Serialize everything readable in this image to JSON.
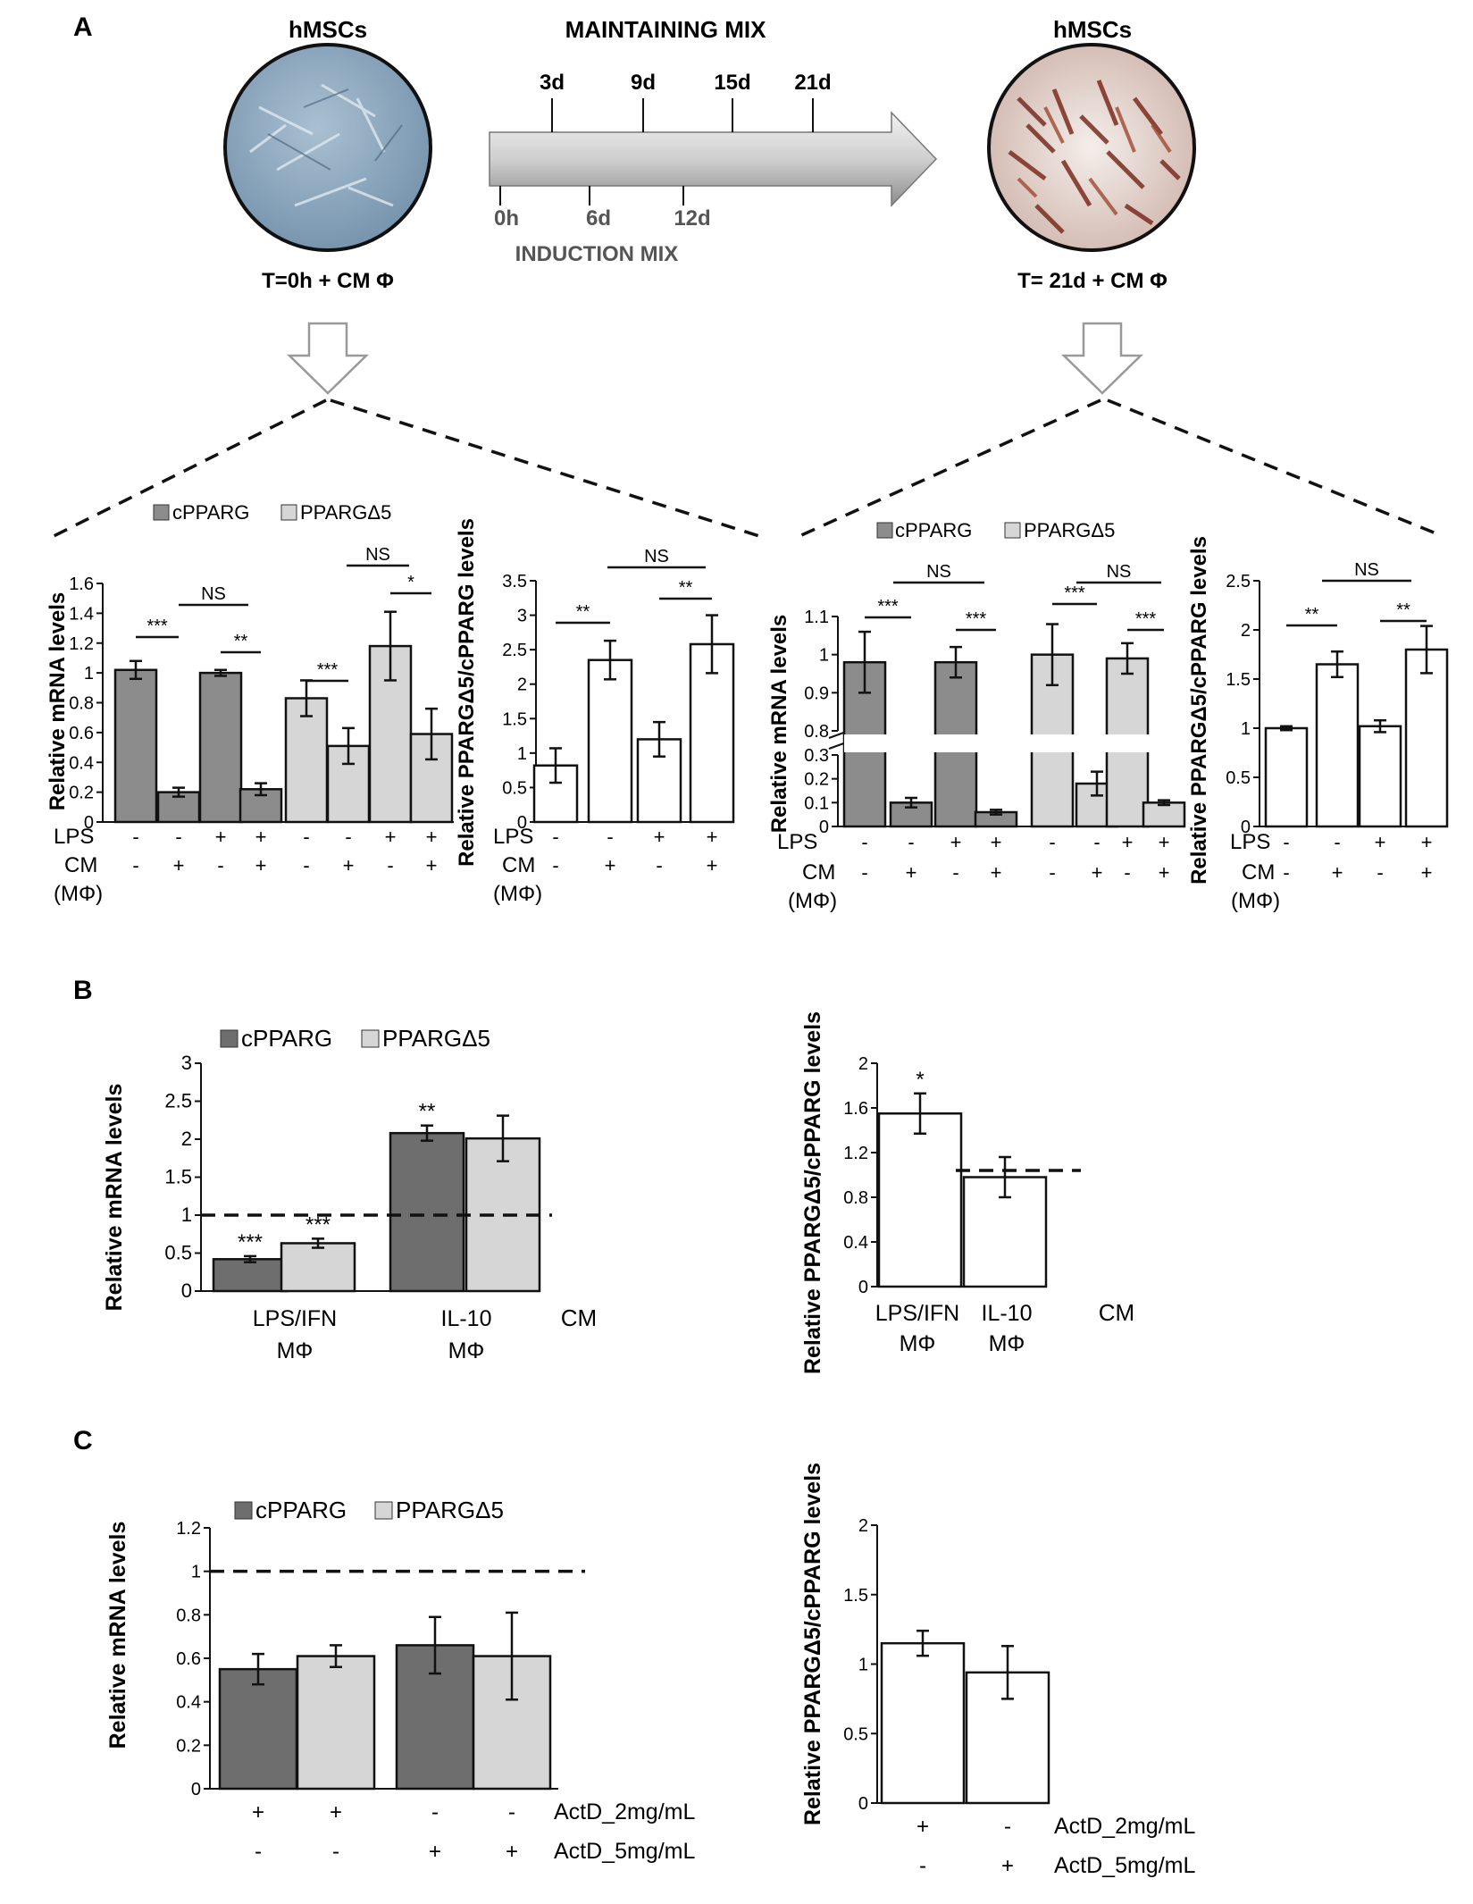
{
  "colors": {
    "cpparg": "#8c8c8c",
    "delta5": "#d6d6d6",
    "ratio": "#ffffff",
    "dark": "#6e6e6e",
    "axis": "#111111"
  },
  "panel_labels": {
    "a": "A",
    "b": "B",
    "c": "C"
  },
  "schema": {
    "left_title": "hMSCs",
    "right_title": "hMSCs",
    "left_caption": "T=0h + CM Φ",
    "right_caption": "T= 21d + CM Φ",
    "maintaining": "MAINTAINING MIX",
    "induction": "INDUCTION MIX",
    "top_ticks": [
      "3d",
      "9d",
      "15d",
      "21d"
    ],
    "bottom_ticks": [
      "0h",
      "6d",
      "12d"
    ]
  },
  "legend": {
    "cpparg": "cPPARG",
    "delta5": "PPARGΔ5"
  },
  "row_labels": {
    "lps": "LPS",
    "cm": "CM",
    "mphi": "(MΦ)"
  },
  "chart_data": [
    {
      "id": "A1",
      "type": "bar",
      "ylabel": "Relative mRNA levels",
      "ylim": [
        0,
        1.6
      ],
      "ticks": [
        "0",
        "0.2",
        "0.4",
        "0.6",
        "0.8",
        "1",
        "1.2",
        "1.4",
        "1.6"
      ],
      "groups": [
        {
          "series": "cPPARG",
          "values": [
            1.02,
            0.2,
            1.0,
            0.22
          ],
          "errors": [
            0.06,
            0.03,
            0.02,
            0.04
          ]
        },
        {
          "series": "PPARGΔ5",
          "values": [
            0.83,
            0.51,
            1.18,
            0.59
          ],
          "errors": [
            0.12,
            0.12,
            0.23,
            0.17
          ]
        }
      ],
      "lps": [
        "-",
        "-",
        "+",
        "+",
        "-",
        "-",
        "+",
        "+"
      ],
      "cm": [
        "-",
        "+",
        "-",
        "+",
        "-",
        "+",
        "-",
        "+"
      ],
      "significance": [
        "***",
        "**",
        "NS",
        "***",
        "*",
        "NS"
      ]
    },
    {
      "id": "A2",
      "type": "bar",
      "ylabel": "Relative PPARGΔ5/cPPARG levels",
      "ylim": [
        0,
        3.5
      ],
      "ticks": [
        "0",
        "0.5",
        "1",
        "1.5",
        "2",
        "2.5",
        "3",
        "3.5"
      ],
      "values": [
        0.82,
        2.35,
        1.2,
        2.58
      ],
      "errors": [
        0.25,
        0.28,
        0.25,
        0.42
      ],
      "lps": [
        "-",
        "-",
        "+",
        "+"
      ],
      "cm": [
        "-",
        "+",
        "-",
        "+"
      ],
      "significance": [
        "**",
        "**",
        "NS"
      ]
    },
    {
      "id": "A3",
      "type": "bar",
      "ylabel": "Relative mRNA levels",
      "broken_axis": [
        0.3,
        0.8
      ],
      "ticks_upper": [
        "0.8",
        "0.9",
        "1",
        "1.1"
      ],
      "ticks_lower": [
        "0",
        "0.1",
        "0.2",
        "0.3"
      ],
      "groups": [
        {
          "series": "cPPARG",
          "values": [
            0.98,
            0.1,
            0.98,
            0.06
          ],
          "errors": [
            0.08,
            0.02,
            0.04,
            0.01
          ]
        },
        {
          "series": "PPARGΔ5",
          "values": [
            1.0,
            0.18,
            0.99,
            0.1
          ],
          "errors": [
            0.08,
            0.05,
            0.04,
            0.01
          ]
        }
      ],
      "lps": [
        "-",
        "-",
        "+",
        "+",
        "-",
        "-",
        "+",
        "+"
      ],
      "cm": [
        "-",
        "+",
        "-",
        "+",
        "-",
        "+",
        "-",
        "+"
      ],
      "significance": [
        "***",
        "***",
        "NS",
        "***",
        "***",
        "NS"
      ]
    },
    {
      "id": "A4",
      "type": "bar",
      "ylabel": "Relative PPARGΔ5/cPPARG levels",
      "ylim": [
        0,
        2.5
      ],
      "ticks": [
        "0",
        "0.5",
        "1",
        "1.5",
        "2",
        "2.5"
      ],
      "values": [
        1.0,
        1.65,
        1.02,
        1.8
      ],
      "errors": [
        0.02,
        0.13,
        0.06,
        0.24
      ],
      "lps": [
        "-",
        "-",
        "+",
        "+"
      ],
      "cm": [
        "-",
        "+",
        "-",
        "+"
      ],
      "significance": [
        "**",
        "**",
        "NS"
      ]
    },
    {
      "id": "B1",
      "type": "bar",
      "ylabel": "Relative mRNA levels",
      "ylim": [
        0,
        3
      ],
      "ticks": [
        "0",
        "0.5",
        "1",
        "1.5",
        "2",
        "2.5",
        "3"
      ],
      "categories": [
        "LPS/IFN",
        "IL-10"
      ],
      "category_sub": [
        "MΦ",
        "MΦ"
      ],
      "axis_note": "CM",
      "series": [
        {
          "name": "cPPARG",
          "values": [
            0.42,
            2.08
          ],
          "errors": [
            0.04,
            0.1
          ],
          "labels": [
            "***",
            "**"
          ]
        },
        {
          "name": "PPARGΔ5",
          "values": [
            0.63,
            2.01
          ],
          "errors": [
            0.06,
            0.3
          ],
          "labels": [
            "***",
            ""
          ]
        }
      ],
      "reference_line": 1
    },
    {
      "id": "B2",
      "type": "bar",
      "ylabel": "Relative PPARGΔ5/cPPARG levels",
      "ylim": [
        0,
        2
      ],
      "ticks": [
        "0",
        "0.4",
        "0.8",
        "1.2",
        "1.6",
        "2"
      ],
      "categories": [
        "LPS/IFN",
        "IL-10"
      ],
      "category_sub": [
        "MΦ",
        "MΦ"
      ],
      "axis_note": "CM",
      "values": [
        1.55,
        0.98
      ],
      "errors": [
        0.18,
        0.18
      ],
      "labels": [
        "*",
        ""
      ],
      "reference_line": 1.04
    },
    {
      "id": "C1",
      "type": "bar",
      "ylabel": "Relative mRNA levels",
      "ylim": [
        0,
        1.2
      ],
      "ticks": [
        "0",
        "0.2",
        "0.4",
        "0.6",
        "0.8",
        "1",
        "1.2"
      ],
      "values": [
        0.55,
        0.61,
        0.66,
        0.61
      ],
      "errors": [
        0.07,
        0.05,
        0.13,
        0.2
      ],
      "series_order": [
        "cPPARG",
        "PPARGΔ5",
        "cPPARG",
        "PPARGΔ5"
      ],
      "row1": {
        "label": "ActD_2mg/mL",
        "signs": [
          "+",
          "+",
          "-",
          "-"
        ]
      },
      "row2": {
        "label": "ActD_5mg/mL",
        "signs": [
          "-",
          "-",
          "+",
          "+"
        ]
      },
      "reference_line": 1
    },
    {
      "id": "C2",
      "type": "bar",
      "ylabel": "Relative PPARGΔ5/cPPARG levels",
      "ylim": [
        0,
        2
      ],
      "ticks": [
        "0",
        "0.5",
        "1",
        "1.5",
        "2"
      ],
      "values": [
        1.15,
        0.94
      ],
      "errors": [
        0.09,
        0.19
      ],
      "row1": {
        "label": "ActD_2mg/mL",
        "signs": [
          "+",
          "-"
        ]
      },
      "row2": {
        "label": "ActD_5mg/mL",
        "signs": [
          "-",
          "+"
        ]
      }
    }
  ]
}
